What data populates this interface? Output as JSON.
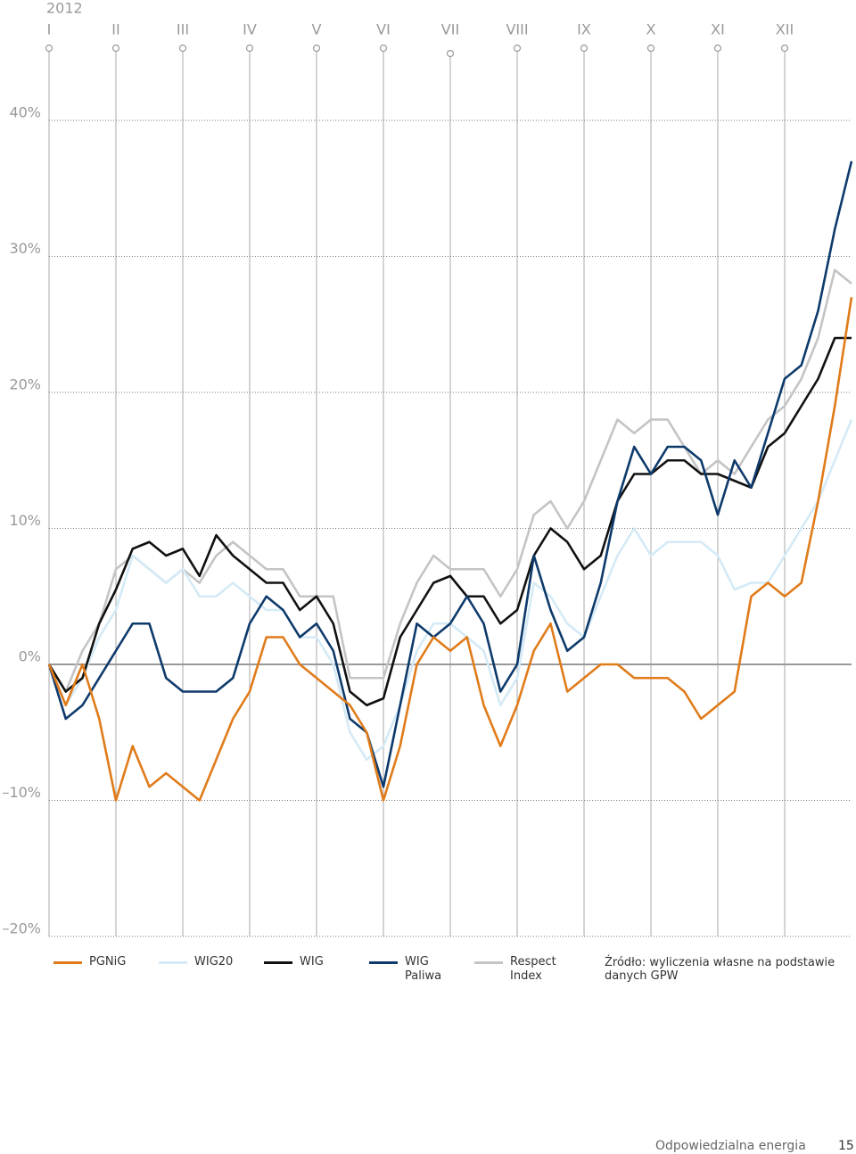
{
  "chart_data": {
    "type": "line",
    "year": "2012",
    "x": [
      0,
      0.25,
      0.5,
      0.75,
      1,
      1.25,
      1.5,
      1.75,
      2,
      2.25,
      2.5,
      2.75,
      3,
      3.25,
      3.5,
      3.75,
      4,
      4.25,
      4.5,
      4.75,
      5,
      5.25,
      5.5,
      5.75,
      6,
      6.25,
      6.5,
      6.75,
      7,
      7.25,
      7.5,
      7.75,
      8,
      8.25,
      8.5,
      8.75,
      9,
      9.25,
      9.5,
      9.75,
      10,
      10.25,
      10.5,
      10.75,
      11,
      11.25,
      11.5,
      11.75,
      12
    ],
    "xlim": [
      0,
      12
    ],
    "xticks": [
      {
        "value": 0,
        "label": "I"
      },
      {
        "value": 1,
        "label": "II"
      },
      {
        "value": 2,
        "label": "III"
      },
      {
        "value": 3,
        "label": "IV"
      },
      {
        "value": 4,
        "label": "V"
      },
      {
        "value": 5,
        "label": "VI"
      },
      {
        "value": 6,
        "label": "VII"
      },
      {
        "value": 7,
        "label": "VIII"
      },
      {
        "value": 8,
        "label": "IX"
      },
      {
        "value": 9,
        "label": "X"
      },
      {
        "value": 10,
        "label": "XI"
      },
      {
        "value": 11,
        "label": "XII"
      }
    ],
    "ylim": [
      -20,
      40
    ],
    "yticks": [
      {
        "value": 40,
        "label": "40%"
      },
      {
        "value": 30,
        "label": "30%"
      },
      {
        "value": 20,
        "label": "20%"
      },
      {
        "value": 10,
        "label": "10%"
      },
      {
        "value": 0,
        "label": "0%"
      },
      {
        "value": -10,
        "label": "–10%"
      },
      {
        "value": -20,
        "label": "–20%"
      }
    ],
    "grid": true,
    "series": [
      {
        "name": "PGNiG",
        "color": "#e07b1a",
        "values": [
          0,
          -3,
          0,
          -4,
          -10,
          -6,
          -9,
          -8,
          -9,
          -10,
          -7,
          -4,
          -2,
          2,
          2,
          0,
          -1,
          -2,
          -3,
          -5,
          -10,
          -6,
          0,
          2,
          1,
          2,
          -3,
          -6,
          -3,
          1,
          3,
          -2,
          -1,
          0,
          0,
          -1,
          -1,
          -1,
          -2,
          -4,
          -3,
          -2,
          5,
          6,
          5,
          6,
          12,
          19,
          27
        ]
      },
      {
        "name": "WIG20",
        "color": "#d4eaf6",
        "values": [
          0,
          -3,
          -1,
          2,
          4,
          8,
          7,
          6,
          7,
          5,
          5,
          6,
          5,
          4,
          4,
          2,
          2,
          0,
          -5,
          -7,
          -6,
          -3,
          1,
          3,
          3,
          2,
          1,
          -3,
          -1,
          6,
          5,
          3,
          2,
          5,
          8,
          10,
          8,
          9,
          9,
          9,
          8,
          5.5,
          6,
          6,
          8,
          10,
          12,
          15,
          18
        ]
      },
      {
        "name": "WIG",
        "color": "#111111",
        "values": [
          0,
          -2,
          -1,
          3,
          5.5,
          8.5,
          9,
          8,
          8.5,
          6.5,
          9.5,
          8,
          7,
          6,
          6,
          4,
          5,
          3,
          -2,
          -3,
          -2.5,
          2,
          4,
          6,
          6.5,
          5,
          5,
          3,
          4,
          8,
          10,
          9,
          7,
          8,
          12,
          14,
          14,
          15,
          15,
          14,
          14,
          13.5,
          13,
          16,
          17,
          19,
          21,
          24,
          24
        ]
      },
      {
        "name": "WIG Paliwa",
        "color": "#0d3a6b",
        "values": [
          0,
          -4,
          -3,
          -1,
          1,
          3,
          3,
          -1,
          -2,
          -2,
          -2,
          -1,
          3,
          5,
          4,
          2,
          3,
          1,
          -4,
          -5,
          -9,
          -3,
          3,
          2,
          3,
          5,
          3,
          -2,
          0,
          8,
          4,
          1,
          2,
          6,
          12,
          16,
          14,
          16,
          16,
          15,
          11,
          15,
          13,
          17,
          21,
          22,
          26,
          32,
          37
        ]
      },
      {
        "name": "Respect Index",
        "color": "#c4c4c4",
        "values": [
          0,
          -2,
          1,
          3,
          7,
          8,
          7,
          6,
          7,
          6,
          8,
          9,
          8,
          7,
          7,
          5,
          5,
          5,
          -1,
          -1,
          -1,
          3,
          6,
          8,
          7,
          7,
          7,
          5,
          7,
          11,
          12,
          10,
          12,
          15,
          18,
          17,
          18,
          18,
          16,
          14,
          15,
          14,
          16,
          18,
          19,
          21,
          24,
          29,
          28
        ]
      }
    ],
    "source": "Źródło: wyliczenia własne na podstawie danych GPW"
  },
  "footer": {
    "title": "Odpowiedzialna energia",
    "page": "15"
  }
}
